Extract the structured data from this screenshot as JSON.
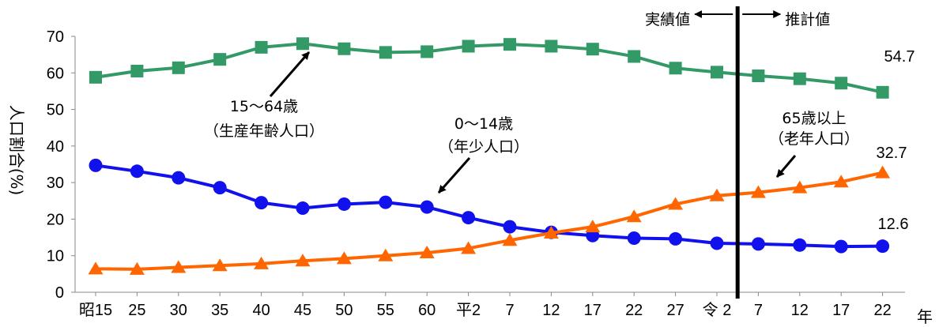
{
  "chart_data": {
    "type": "line",
    "ylabel": "人口割合(%)",
    "xlabel": "年",
    "ylim": [
      0,
      70
    ],
    "yticks": [
      0,
      10,
      20,
      30,
      40,
      50,
      60,
      70
    ],
    "categories": [
      "昭15",
      "25",
      "30",
      "35",
      "40",
      "45",
      "50",
      "55",
      "60",
      "平2",
      "7",
      "12",
      "17",
      "22",
      "27",
      "令 2",
      "7",
      "12",
      "17",
      "22"
    ],
    "series": [
      {
        "key": "working",
        "color": "#339966",
        "marker": "square",
        "values": [
          58.8,
          60.5,
          61.4,
          63.7,
          67.0,
          68.0,
          66.6,
          65.6,
          65.8,
          67.3,
          67.8,
          67.3,
          66.5,
          64.5,
          61.3,
          60.2,
          59.2,
          58.4,
          57.2,
          54.7
        ]
      },
      {
        "key": "young",
        "color": "#1111ee",
        "marker": "circle",
        "values": [
          34.7,
          33.1,
          31.3,
          28.6,
          24.5,
          23.0,
          24.1,
          24.6,
          23.3,
          20.4,
          17.9,
          16.4,
          15.5,
          14.8,
          14.6,
          13.4,
          13.2,
          12.9,
          12.5,
          12.6
        ]
      },
      {
        "key": "elderly",
        "color": "#ff6600",
        "marker": "triangle",
        "values": [
          6.4,
          6.3,
          6.8,
          7.3,
          7.8,
          8.6,
          9.2,
          10.0,
          10.8,
          12.0,
          14.2,
          16.2,
          17.9,
          20.7,
          24.1,
          26.4,
          27.3,
          28.6,
          30.2,
          32.7
        ]
      }
    ],
    "end_labels": [
      "54.7",
      "32.7",
      "12.6"
    ],
    "annotations": [
      {
        "lines": [
          "15～64歳",
          "（生産年齢人口）"
        ]
      },
      {
        "lines": [
          "0～14歳",
          "（年少人口）"
        ]
      },
      {
        "lines": [
          "65歳以上",
          "（老年人口）"
        ]
      }
    ],
    "divider": {
      "after_category_index": 15,
      "left_label": "実績値",
      "right_label": "推計値"
    },
    "grid": false,
    "legend": "none"
  }
}
